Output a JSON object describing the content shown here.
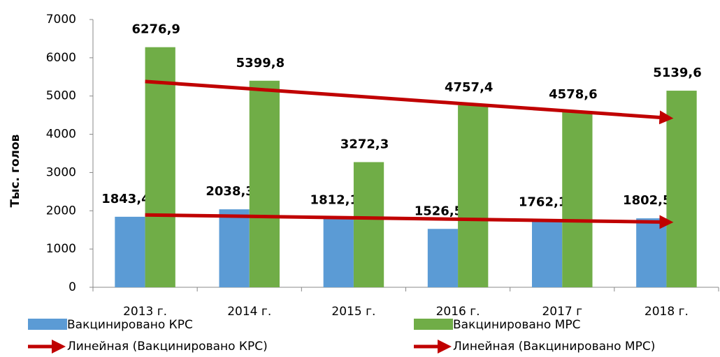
{
  "chart_data": {
    "type": "bar",
    "y_label": "Тыс. голов",
    "categories": [
      "2013 г.",
      "2014 г.",
      "2015 г.",
      "2016 г.",
      "2017 г",
      "2018 г."
    ],
    "series": [
      {
        "name": "Вакцинировано КРС",
        "color": "#5b9bd5",
        "values": [
          1843.4,
          2038.3,
          1812.1,
          1526.5,
          1762.1,
          1802.5
        ],
        "value_labels": [
          "1843,4",
          "2038,3",
          "1812,1",
          "1526,5",
          "1762,1",
          "1802,5"
        ],
        "trendline": {
          "name": "Линейная (Вакцинировано КРС)",
          "color": "#c00000"
        }
      },
      {
        "name": "Вакцинировано МРС",
        "color": "#70ad47",
        "values": [
          6276.9,
          5399.8,
          3272.3,
          4757.4,
          4578.6,
          5139.6
        ],
        "value_labels": [
          "6276,9",
          "5399,8",
          "3272,3",
          "4757,4",
          "4578,6",
          "5139,6"
        ],
        "trendline": {
          "name": "Линейная (Вакцинировано МРС)",
          "color": "#c00000"
        }
      }
    ],
    "ylim": [
      0,
      7000
    ],
    "yticks": [
      0,
      1000,
      2000,
      3000,
      4000,
      5000,
      6000,
      7000
    ],
    "grid": false,
    "legend": "bottom"
  }
}
